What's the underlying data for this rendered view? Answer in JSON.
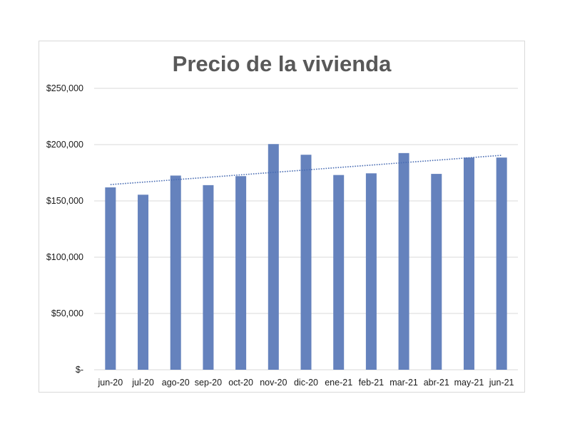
{
  "chart_data": {
    "type": "bar",
    "title": "Precio de la vivienda",
    "xlabel": "",
    "ylabel": "",
    "categories": [
      "jun-20",
      "jul-20",
      "ago-20",
      "sep-20",
      "oct-20",
      "nov-20",
      "dic-20",
      "ene-21",
      "feb-21",
      "mar-21",
      "abr-21",
      "may-21",
      "jun-21"
    ],
    "values": [
      162000,
      155500,
      172500,
      164000,
      172000,
      200500,
      191000,
      173000,
      174500,
      192500,
      174000,
      188500,
      188500
    ],
    "ylim": [
      0,
      250000
    ],
    "y_ticks": [
      0,
      50000,
      100000,
      150000,
      200000,
      250000
    ],
    "y_tick_labels": [
      "$-",
      "$50,000",
      "$100,000",
      "$150,000",
      "$200,000",
      "$250,000"
    ],
    "trendline": {
      "type": "linear",
      "style": "dotted",
      "start_value": 164500,
      "end_value": 190500
    },
    "grid": true,
    "legend": "none",
    "colors": {
      "bar": "#6582bd",
      "trendline": "#4a6db3",
      "grid": "#d9d9d9",
      "title": "#595959"
    }
  }
}
